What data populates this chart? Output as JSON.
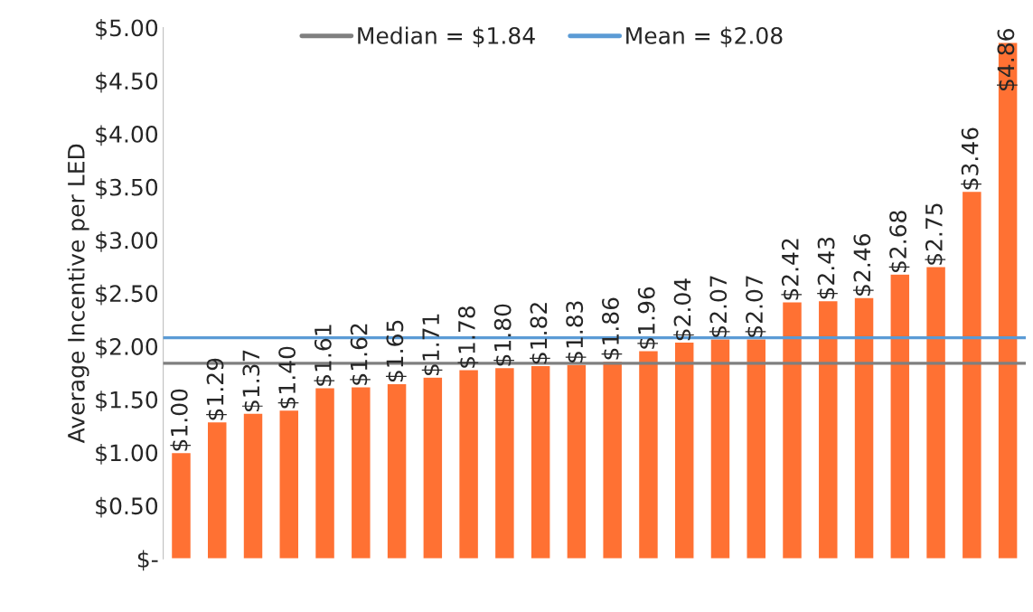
{
  "chart_data": {
    "type": "bar",
    "ylabel": "Average Incentive per LED",
    "categories": [
      null,
      null,
      null,
      null,
      null,
      null,
      null,
      null,
      null,
      null,
      null,
      null,
      null,
      null,
      null,
      null,
      null,
      null,
      null,
      null,
      null,
      null,
      null,
      null
    ],
    "values": [
      1.0,
      1.29,
      1.37,
      1.4,
      1.61,
      1.62,
      1.65,
      1.71,
      1.78,
      1.8,
      1.82,
      1.83,
      1.86,
      1.96,
      2.04,
      2.07,
      2.07,
      2.42,
      2.43,
      2.46,
      2.68,
      2.75,
      3.46,
      4.86
    ],
    "value_labels": [
      "$1.00",
      "$1.29",
      "$1.37",
      "$1.40",
      "$1.61",
      "$1.62",
      "$1.65",
      "$1.71",
      "$1.78",
      "$1.80",
      "$1.82",
      "$1.83",
      "$1.86",
      "$1.96",
      "$2.04",
      "$2.07",
      "$2.07",
      "$2.42",
      "$2.43",
      "$2.46",
      "$2.68",
      "$2.75",
      "$3.46",
      "$4.86"
    ],
    "color": "#ff7133",
    "ylim": [
      0,
      5
    ],
    "yticks": [
      {
        "value": 0,
        "label": "$-"
      },
      {
        "value": 0.5,
        "label": "$0.50"
      },
      {
        "value": 1,
        "label": "$1.00"
      },
      {
        "value": 1.5,
        "label": "$1.50"
      },
      {
        "value": 2,
        "label": "$2.00"
      },
      {
        "value": 2.5,
        "label": "$2.50"
      },
      {
        "value": 3,
        "label": "$3.00"
      },
      {
        "value": 3.5,
        "label": "$3.50"
      },
      {
        "value": 4,
        "label": "$4.00"
      },
      {
        "value": 4.5,
        "label": "$4.50"
      },
      {
        "value": 5,
        "label": "$5.00"
      }
    ],
    "ref_lines": [
      {
        "axis": "y",
        "value": 1.84,
        "label": "Median = $1.84",
        "color": "#7f7f7f"
      },
      {
        "axis": "y",
        "value": 2.08,
        "label": "Mean = $2.08",
        "color": "#5b9bd5"
      }
    ],
    "legend": "top",
    "grid": false
  }
}
